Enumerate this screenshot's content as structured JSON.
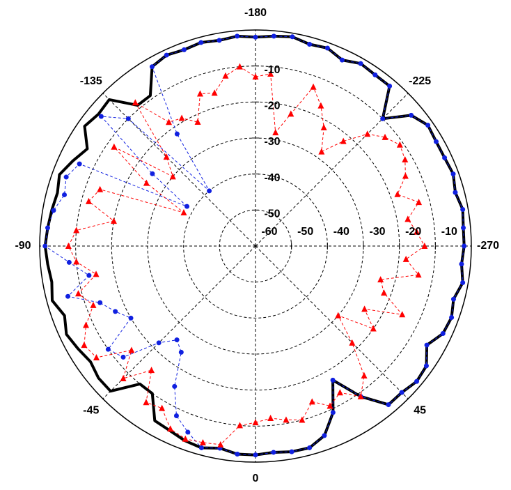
{
  "chart_data": {
    "type": "polar-line",
    "title": "",
    "theta_labels": [
      {
        "deg": 0,
        "text": "0"
      },
      {
        "deg": 45,
        "text": "45"
      },
      {
        "deg": 90,
        "text": "-270"
      },
      {
        "deg": 135,
        "text": "-225"
      },
      {
        "deg": 180,
        "text": "-180"
      },
      {
        "deg": 225,
        "text": "-135"
      },
      {
        "deg": 270,
        "text": "-90"
      },
      {
        "deg": 315,
        "text": "-45"
      }
    ],
    "r_axis": {
      "min": -60,
      "max": 0,
      "ring_step": 10
    },
    "r_tick_labels_vertical": [
      "-10",
      "-20",
      "-30",
      "-40",
      "-50"
    ],
    "r_tick_labels_horizontal": [
      "-60",
      "-50",
      "-40",
      "-30",
      "-20",
      "-10"
    ],
    "colors": {
      "black_series": "#000000",
      "blue_series": "#1020e0",
      "red_series": "#ff0000",
      "grid": "#000000"
    },
    "series": [
      {
        "style": "solid-thick",
        "color": "black",
        "theta": [
          0,
          5,
          10,
          15,
          20,
          25,
          30,
          35,
          40,
          45,
          50,
          55,
          60,
          65,
          70,
          75,
          80,
          85,
          90,
          95,
          100,
          105,
          110,
          115,
          120,
          125,
          130,
          135,
          140,
          145,
          150,
          155,
          160,
          165,
          170,
          175,
          180,
          185,
          190,
          195,
          200,
          205,
          210,
          215,
          220,
          225,
          230,
          235,
          240,
          245,
          250,
          255,
          260,
          265,
          270,
          275,
          280,
          285,
          290,
          295,
          300,
          305,
          310,
          315,
          320,
          325,
          330,
          335,
          340,
          345,
          350,
          355
        ],
        "r": [
          -2,
          -2.5,
          -2,
          -2,
          -4,
          -9,
          -17,
          -9,
          -2.5,
          -2.5,
          -1.5,
          -2,
          -5,
          -2.5,
          -2,
          -3,
          -1.5,
          -2.5,
          -2,
          -2,
          -1.5,
          -2.5,
          -1.5,
          -2,
          -2,
          -1.5,
          -3.5,
          -10,
          -2,
          -2,
          -1.5,
          -3,
          -1.5,
          -2,
          -1,
          -1.5,
          -2,
          -1.5,
          -2,
          -1.5,
          -2,
          -1.5,
          -2.5,
          -9,
          -9,
          -2.5,
          -3,
          -2,
          -6,
          -4,
          -2,
          -3,
          -2.5,
          -2,
          -1.5,
          -2,
          -2.5,
          -1.5,
          -3.5,
          -2,
          -3,
          -4,
          -3,
          -3,
          -10,
          -10,
          -4,
          -3.5,
          -2.5,
          -2,
          -3,
          -2
        ]
      },
      {
        "style": "dashed-circle-markers",
        "color": "blue",
        "theta": [
          0,
          5,
          10,
          15,
          20,
          25,
          30,
          35,
          40,
          45,
          50,
          55,
          60,
          65,
          70,
          75,
          80,
          85,
          90,
          95,
          100,
          105,
          110,
          115,
          120,
          125,
          130,
          135,
          140,
          145,
          150,
          155,
          160,
          165,
          170,
          175,
          180,
          185,
          190,
          195,
          200,
          205,
          210,
          215,
          220,
          225,
          230,
          235,
          240,
          245,
          250,
          255,
          260,
          265,
          270,
          275,
          280,
          285,
          290,
          295,
          300,
          305,
          310,
          315,
          320,
          325,
          330,
          335,
          340,
          345,
          350,
          355
        ],
        "r": [
          -2,
          -2.5,
          -2,
          -2,
          -4,
          -9,
          -17,
          -9,
          -2.5,
          -2.5,
          -1.5,
          -2,
          -5,
          -2.5,
          -2,
          -3,
          -1.5,
          -2.5,
          -2,
          -2,
          -1.5,
          -2.5,
          -1.5,
          -2,
          -2,
          -1.5,
          -3.5,
          -10,
          -2,
          -2,
          -1.5,
          -3,
          -1.5,
          -2,
          -1,
          -1.5,
          -2,
          -1.5,
          -2,
          -1.5,
          -2,
          -1.5,
          -2.5,
          -22,
          -40,
          -10,
          -4,
          -25,
          -38,
          -6,
          -4,
          -5,
          -3,
          -2,
          -1.5,
          -8,
          -13,
          -6,
          -14,
          -17,
          -20,
          -10,
          -12,
          -22,
          -26,
          -24,
          -15,
          -8,
          -5,
          -2,
          -3,
          -2
        ]
      },
      {
        "style": "dashed-triangle-markers",
        "color": "red",
        "theta": [
          0,
          5,
          10,
          15,
          20,
          25,
          30,
          35,
          40,
          45,
          50,
          55,
          60,
          65,
          70,
          75,
          80,
          85,
          90,
          95,
          100,
          105,
          110,
          115,
          120,
          125,
          130,
          135,
          140,
          145,
          150,
          155,
          160,
          165,
          170,
          175,
          180,
          185,
          190,
          195,
          200,
          205,
          210,
          215,
          220,
          225,
          230,
          235,
          240,
          245,
          250,
          255,
          260,
          265,
          270,
          275,
          280,
          285,
          290,
          295,
          300,
          305,
          310,
          315,
          320,
          325,
          330,
          335,
          340,
          345,
          350,
          355
        ],
        "r": [
          -11,
          -12,
          -11,
          -10,
          -14,
          -11,
          -13,
          -9,
          -13,
          -22,
          -30,
          -20,
          -25,
          -15,
          -22,
          -24,
          -14,
          -18,
          -13,
          -15,
          -17,
          -13,
          -18,
          -14,
          -12,
          -11,
          -13,
          -16,
          -22,
          -28,
          -22,
          -17,
          -13,
          -22,
          -28,
          -12,
          -13,
          -10,
          -12,
          -16,
          -15,
          -22,
          -19,
          -18,
          -8,
          -25,
          -30,
          -12,
          -25,
          -38,
          -14,
          -12,
          -20,
          -10,
          -8,
          -10,
          -15,
          -9,
          -12,
          -8,
          -5,
          -6,
          -15,
          -8,
          -15,
          -7,
          -8,
          -4,
          -3,
          -3.5,
          -4,
          -10
        ]
      }
    ]
  }
}
